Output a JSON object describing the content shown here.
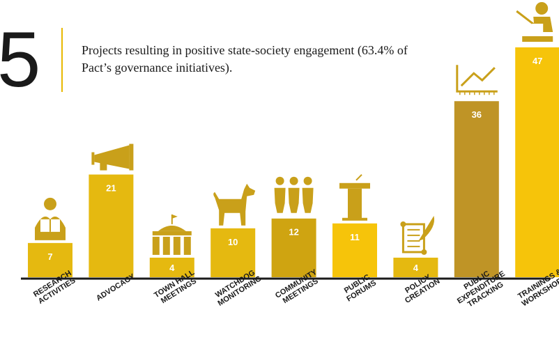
{
  "header": {
    "number": "5",
    "text": "Projects resulting in positive state-society engagement (63.4% of Pact’s governance initiatives)."
  },
  "colors": {
    "bar_gold": "#e5b910",
    "bar_dark": "#c29a12",
    "bar_bright": "#f6c40a",
    "icon": "#c9a01a",
    "axis": "#1a1a1a"
  },
  "chart_data": {
    "type": "bar",
    "categories": [
      [
        "RESEARCH",
        "ACTIVITIES"
      ],
      [
        "ADVOCACY"
      ],
      [
        "TOWN HALL",
        "MEETINGS"
      ],
      [
        "WATCHDOG",
        "MONITORING"
      ],
      [
        "COMMUNITY",
        "MEETINGS"
      ],
      [
        "PUBLIC",
        "FORUMS"
      ],
      [
        "POLICY",
        "CREATION"
      ],
      [
        "PUBLIC",
        "EXPENDITURE",
        "TRACKING"
      ],
      [
        "TRAININGS &",
        "WORKSHOPS"
      ]
    ],
    "values": [
      7,
      21,
      4,
      10,
      12,
      11,
      4,
      36,
      47
    ],
    "bar_colors": [
      "#e5b910",
      "#e5b910",
      "#e5b910",
      "#e5b910",
      "#cfa411",
      "#f6c40a",
      "#e5b910",
      "#bf9426",
      "#f6c40a"
    ],
    "icons": [
      "reader-icon",
      "megaphone-icon",
      "town-hall-icon",
      "dog-icon",
      "people-icon",
      "podium-icon",
      "scroll-quill-icon",
      "line-chart-icon",
      "teacher-icon"
    ],
    "title": "",
    "xlabel": "",
    "ylabel": "",
    "ylim": [
      0,
      47
    ]
  }
}
